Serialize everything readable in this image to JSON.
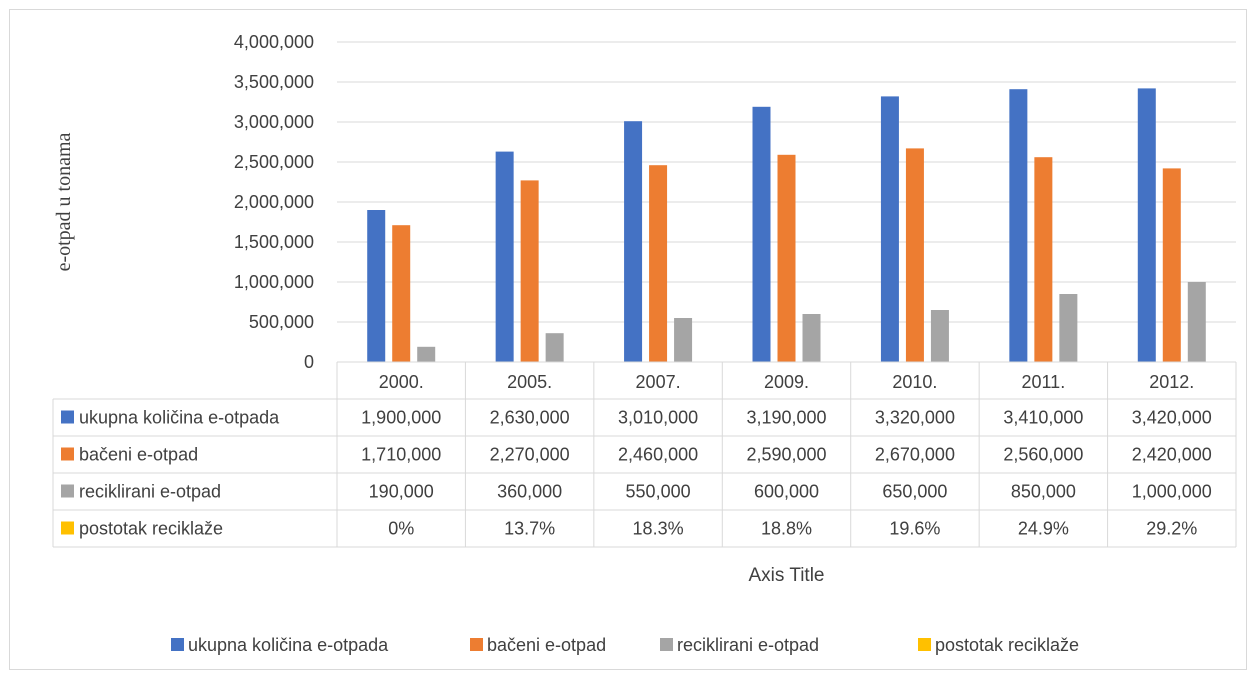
{
  "chart_data": {
    "type": "bar",
    "categories": [
      "2000.",
      "2005.",
      "2007.",
      "2009.",
      "2010.",
      "2011.",
      "2012."
    ],
    "series": [
      {
        "name": "ukupna količina e-otpada",
        "color": "#4472c4",
        "values": [
          1900000,
          2630000,
          3010000,
          3190000,
          3320000,
          3410000,
          3420000
        ],
        "table": [
          "1,900,000",
          "2,630,000",
          "3,010,000",
          "3,190,000",
          "3,320,000",
          "3,410,000",
          "3,420,000"
        ]
      },
      {
        "name": "bačeni e-otpad",
        "color": "#ed7d31",
        "values": [
          1710000,
          2270000,
          2460000,
          2590000,
          2670000,
          2560000,
          2420000
        ],
        "table": [
          "1,710,000",
          "2,270,000",
          "2,460,000",
          "2,590,000",
          "2,670,000",
          "2,560,000",
          "2,420,000"
        ]
      },
      {
        "name": "reciklirani e-otpad",
        "color": "#a5a5a5",
        "values": [
          190000,
          360000,
          550000,
          600000,
          650000,
          850000,
          1000000
        ],
        "table": [
          "190,000",
          "360,000",
          "550,000",
          "600,000",
          "650,000",
          "850,000",
          "1,000,000"
        ]
      },
      {
        "name": "postotak reciklaže",
        "color": "#ffc000",
        "values": [
          0,
          13.7,
          18.3,
          18.8,
          19.6,
          24.9,
          29.2
        ],
        "table": [
          "0%",
          "13.7%",
          "18.3%",
          "18.8%",
          "19.6%",
          "24.9%",
          "29.2%"
        ]
      }
    ],
    "ylim": [
      0,
      4000000
    ],
    "yticks": [
      "0",
      "500,000",
      "1,000,000",
      "1,500,000",
      "2,000,000",
      "2,500,000",
      "3,000,000",
      "3,500,000",
      "4,000,000"
    ],
    "ylabel": "e-otpad u tonama",
    "xlabel": "Axis Title",
    "grid": true,
    "legend": "bottom",
    "data_table": true
  }
}
